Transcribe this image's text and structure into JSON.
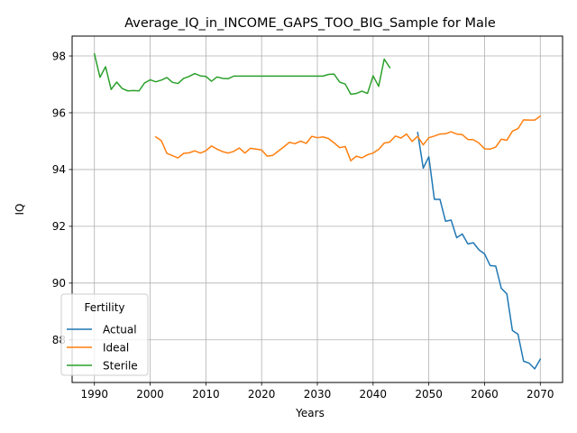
{
  "chart_data": {
    "type": "line",
    "title": "Average_IQ_in_INCOME_GAPS_TOO_BIG_Sample for Male",
    "xlabel": "Years",
    "ylabel": "IQ",
    "xlim": [
      1986.0,
      2074.0
    ],
    "ylim": [
      86.5,
      98.7
    ],
    "xticks": [
      1990,
      2000,
      2010,
      2020,
      2030,
      2040,
      2050,
      2060,
      2070
    ],
    "yticks": [
      88,
      90,
      92,
      94,
      96,
      98
    ],
    "grid": true,
    "legend": {
      "title": "Fertility",
      "position": "lower-left"
    },
    "series": [
      {
        "name": "Actual",
        "color": "#1f77b4",
        "x": [
          2048,
          2049,
          2050,
          2051,
          2052,
          2053,
          2054,
          2055,
          2056,
          2057,
          2058,
          2059,
          2060,
          2061,
          2062,
          2063,
          2064,
          2065,
          2066,
          2067,
          2068,
          2069,
          2070
        ],
        "y": [
          95.3,
          94.05,
          94.45,
          92.95,
          92.95,
          92.18,
          92.22,
          91.6,
          91.73,
          91.38,
          91.42,
          91.17,
          91.03,
          90.62,
          90.6,
          89.82,
          89.62,
          88.33,
          88.2,
          87.25,
          87.18,
          86.98,
          87.32
        ]
      },
      {
        "name": "Ideal",
        "color": "#ff7f0e",
        "x": [
          2001,
          2002,
          2003,
          2004,
          2005,
          2006,
          2007,
          2008,
          2009,
          2010,
          2011,
          2012,
          2013,
          2014,
          2015,
          2016,
          2017,
          2018,
          2019,
          2020,
          2021,
          2022,
          2023,
          2024,
          2025,
          2026,
          2027,
          2028,
          2029,
          2030,
          2031,
          2032,
          2033,
          2034,
          2035,
          2036,
          2037,
          2038,
          2039,
          2040,
          2041,
          2042,
          2043,
          2044,
          2045,
          2046,
          2047,
          2048,
          2049,
          2050,
          2051,
          2052,
          2053,
          2054,
          2055,
          2056,
          2057,
          2058,
          2059,
          2060,
          2061,
          2062,
          2063,
          2064,
          2065,
          2066,
          2067,
          2068,
          2069,
          2070
        ],
        "y": [
          95.15,
          95.02,
          94.57,
          94.49,
          94.41,
          94.57,
          94.59,
          94.66,
          94.58,
          94.66,
          94.83,
          94.72,
          94.63,
          94.58,
          94.64,
          94.76,
          94.58,
          94.75,
          94.72,
          94.69,
          94.47,
          94.5,
          94.65,
          94.8,
          94.96,
          94.91,
          95.0,
          94.92,
          95.17,
          95.12,
          95.15,
          95.09,
          94.94,
          94.77,
          94.81,
          94.31,
          94.47,
          94.41,
          94.52,
          94.58,
          94.71,
          94.93,
          94.97,
          95.18,
          95.11,
          95.25,
          94.99,
          95.17,
          94.87,
          95.12,
          95.18,
          95.25,
          95.26,
          95.33,
          95.25,
          95.23,
          95.06,
          95.05,
          94.93,
          94.73,
          94.72,
          94.79,
          95.07,
          95.03,
          95.35,
          95.44,
          95.75,
          95.74,
          95.74,
          95.88
        ]
      },
      {
        "name": "Sterile",
        "color": "#2ca02c",
        "x": [
          1990,
          1991,
          1992,
          1993,
          1994,
          1995,
          1996,
          1997,
          1998,
          1999,
          2000,
          2001,
          2002,
          2003,
          2004,
          2005,
          2006,
          2007,
          2008,
          2009,
          2010,
          2011,
          2012,
          2013,
          2014,
          2015,
          2016,
          2017,
          2018,
          2019,
          2020,
          2021,
          2022,
          2023,
          2024,
          2025,
          2026,
          2027,
          2028,
          2029,
          2030,
          2031,
          2032,
          2033,
          2034,
          2035,
          2036,
          2037,
          2038,
          2039,
          2040,
          2041,
          2042,
          2043
        ],
        "y": [
          98.07,
          97.25,
          97.62,
          96.82,
          97.08,
          96.85,
          96.77,
          96.78,
          96.77,
          97.05,
          97.16,
          97.09,
          97.15,
          97.24,
          97.07,
          97.03,
          97.21,
          97.28,
          97.38,
          97.3,
          97.28,
          97.11,
          97.26,
          97.21,
          97.2,
          97.29,
          97.29,
          97.29,
          97.29,
          97.29,
          97.29,
          97.29,
          97.29,
          97.29,
          97.29,
          97.29,
          97.29,
          97.29,
          97.29,
          97.29,
          97.29,
          97.29,
          97.35,
          97.36,
          97.08,
          97.01,
          96.65,
          96.68,
          96.76,
          96.68,
          97.3,
          96.93,
          97.89,
          97.59
        ]
      }
    ]
  }
}
